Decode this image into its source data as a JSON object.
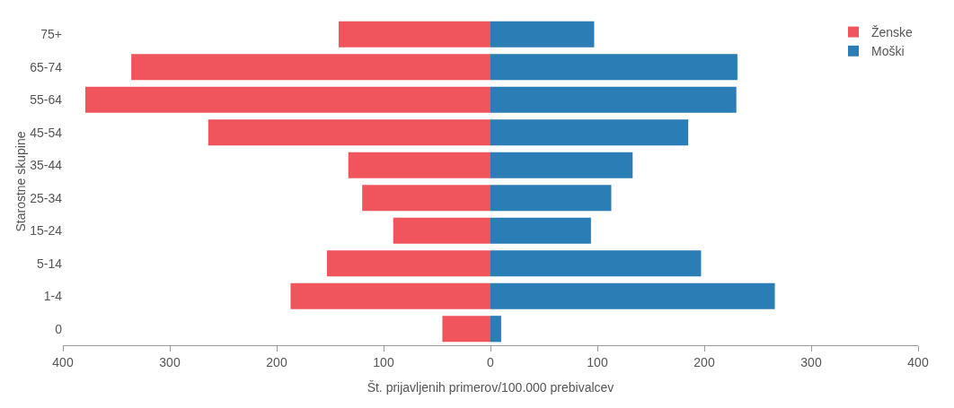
{
  "chart_data": {
    "type": "bar",
    "orientation": "horizontal",
    "stacked": true,
    "categories": [
      "75+",
      "65-74",
      "55-64",
      "45-54",
      "35-44",
      "25-34",
      "15-24",
      "5-14",
      "1-4",
      "0"
    ],
    "series": [
      {
        "name": "Ženske",
        "color": "#f0545c",
        "values": [
          -142,
          -336,
          -379,
          -264,
          -133,
          -120,
          -91,
          -153,
          -187,
          -45
        ]
      },
      {
        "name": "Moški",
        "color": "#2a7db5",
        "values": [
          97,
          231,
          230,
          185,
          133,
          113,
          94,
          197,
          266,
          10
        ]
      }
    ],
    "xlim": [
      -400,
      400
    ],
    "xticks": [
      {
        "value": -400,
        "label": "400"
      },
      {
        "value": -300,
        "label": "300"
      },
      {
        "value": -200,
        "label": "200"
      },
      {
        "value": -100,
        "label": "100"
      },
      0,
      100,
      200,
      300,
      400
    ],
    "xlabel": "Št. prijavljenih primerov/100.000 prebivalcev",
    "ylabel": "Starostne skupine",
    "grid": false,
    "legend": "top right"
  }
}
